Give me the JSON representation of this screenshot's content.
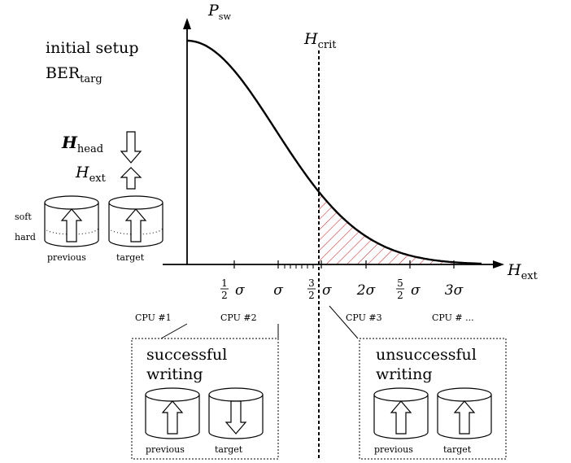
{
  "axes": {
    "y_label": "P",
    "y_sub": "sw",
    "x_label": "H",
    "x_sub": "ext"
  },
  "critical_line": {
    "label": "H",
    "label_sub": "crit"
  },
  "setup": {
    "line1": "initial setup",
    "line2": "BER",
    "line2_sub": "targ"
  },
  "fields": {
    "head_label": "H",
    "head_sub": "head",
    "ext_label": "H",
    "ext_sub": "ext"
  },
  "legend_cylinders": {
    "soft": "soft",
    "hard": "hard",
    "previous": "previous",
    "target": "target",
    "previous_arrow": "up",
    "target_arrow": "up"
  },
  "ticks": [
    {
      "num": "1",
      "den": "2",
      "sym": "σ"
    },
    {
      "sym": "σ"
    },
    {
      "num": "3",
      "den": "2",
      "sym": "σ"
    },
    {
      "sym": "2σ"
    },
    {
      "num": "5",
      "den": "2",
      "sym": "σ"
    },
    {
      "sym": "3σ"
    }
  ],
  "cpus": [
    "CPU #1",
    "CPU #2",
    "CPU #3",
    "CPU # ..."
  ],
  "success_box": {
    "line1": "successful",
    "line2": "writing",
    "previous": "previous",
    "target": "target",
    "previous_arrow": "up",
    "target_arrow": "down"
  },
  "fail_box": {
    "line1": "unsuccessful",
    "line2": "writing",
    "previous": "previous",
    "target": "target",
    "previous_arrow": "up",
    "target_arrow": "up"
  },
  "colors": {
    "curve": "#000000",
    "hatch": "#d62728"
  }
}
